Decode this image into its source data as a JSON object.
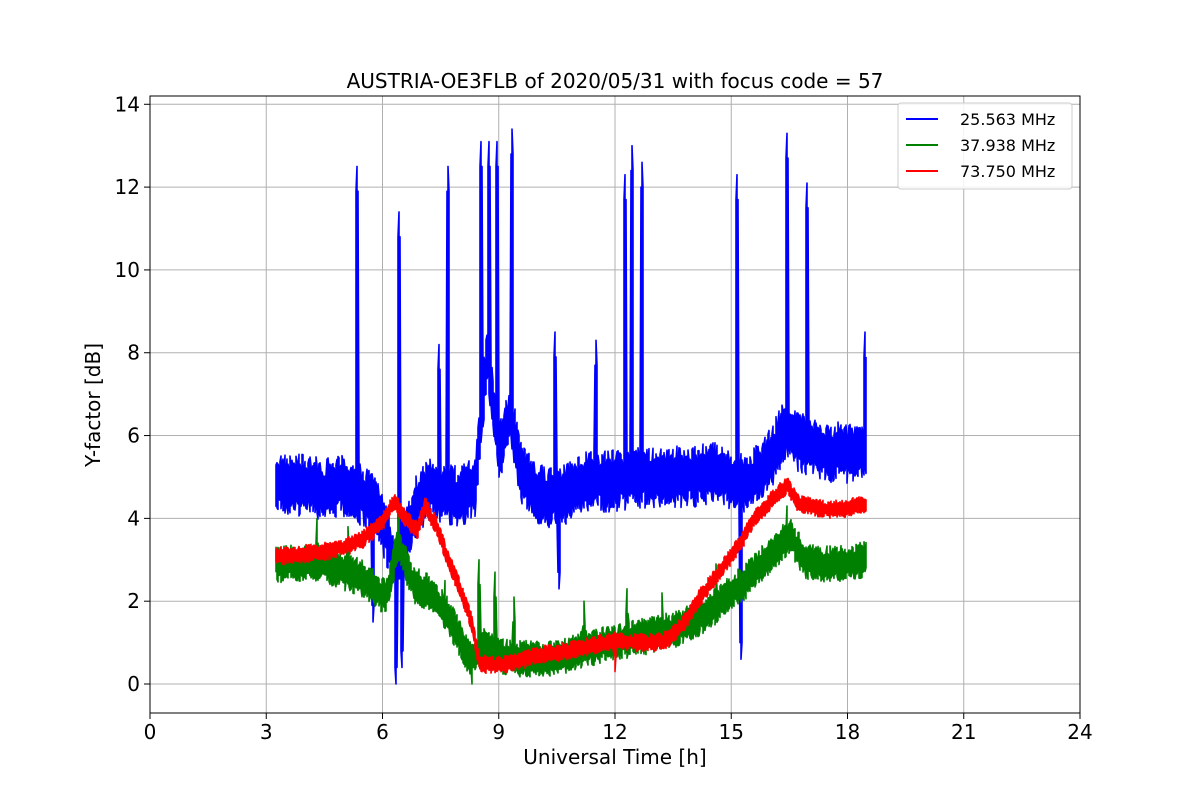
{
  "chart_data": {
    "type": "line",
    "title": "AUSTRIA-OE3FLB of 2020/05/31 with focus code = 57",
    "xlabel": "Universal Time [h]",
    "ylabel": "Y-factor [dB]",
    "xlim": [
      0,
      24
    ],
    "ylim": [
      -0.7,
      14.2
    ],
    "xticks": [
      0,
      3,
      6,
      9,
      12,
      15,
      18,
      21,
      24
    ],
    "yticks": [
      0,
      2,
      4,
      6,
      8,
      10,
      12,
      14
    ],
    "grid": true,
    "legend_position": "top-right",
    "series": [
      {
        "name": "25.563 MHz",
        "color": "#0000ff",
        "x": [
          3.25,
          3.5,
          4.0,
          4.5,
          5.0,
          5.4,
          5.8,
          6.1,
          6.3,
          6.5,
          6.8,
          7.2,
          7.6,
          8.0,
          8.4,
          8.7,
          9.0,
          9.3,
          9.6,
          10.0,
          10.4,
          10.8,
          11.2,
          11.6,
          12.0,
          12.5,
          13.0,
          13.5,
          14.0,
          14.5,
          14.9,
          15.3,
          15.7,
          16.0,
          16.4,
          16.8,
          17.2,
          17.6,
          18.0,
          18.5
        ],
        "y": [
          4.9,
          4.8,
          4.8,
          4.7,
          4.8,
          4.6,
          4.4,
          3.6,
          3.0,
          3.2,
          4.2,
          4.7,
          4.6,
          4.5,
          4.8,
          8.0,
          5.5,
          6.5,
          5.0,
          4.6,
          4.5,
          4.6,
          4.9,
          4.9,
          4.9,
          5.0,
          5.0,
          5.0,
          5.0,
          5.1,
          5.0,
          4.8,
          5.1,
          5.4,
          6.2,
          5.8,
          5.7,
          5.6,
          5.6,
          5.6
        ],
        "noise": 0.75,
        "spikes": [
          [
            5.35,
            12.5
          ],
          [
            6.42,
            11.4
          ],
          [
            7.47,
            8.2
          ],
          [
            7.7,
            12.5
          ],
          [
            8.55,
            13.1
          ],
          [
            8.75,
            13.1
          ],
          [
            8.95,
            13.1
          ],
          [
            9.35,
            13.4
          ],
          [
            10.45,
            8.5
          ],
          [
            11.5,
            8.3
          ],
          [
            12.25,
            12.3
          ],
          [
            12.45,
            13.0
          ],
          [
            12.7,
            12.6
          ],
          [
            15.15,
            12.3
          ],
          [
            16.45,
            13.3
          ],
          [
            16.95,
            12.1
          ],
          [
            18.45,
            8.5
          ]
        ],
        "dips": [
          [
            6.35,
            0.0
          ],
          [
            6.5,
            0.4
          ],
          [
            5.75,
            1.5
          ],
          [
            10.55,
            2.3
          ],
          [
            15.25,
            0.6
          ]
        ]
      },
      {
        "name": "37.938 MHz",
        "color": "#008000",
        "x": [
          3.25,
          3.6,
          4.0,
          4.5,
          5.0,
          5.4,
          5.8,
          6.1,
          6.4,
          6.8,
          7.2,
          7.6,
          8.0,
          8.3,
          8.6,
          9.0,
          9.5,
          10.0,
          10.5,
          11.0,
          11.5,
          12.0,
          12.5,
          13.0,
          13.5,
          14.0,
          14.5,
          15.0,
          15.4,
          15.8,
          16.2,
          16.5,
          16.9,
          17.3,
          17.8,
          18.5
        ],
        "y": [
          2.9,
          2.9,
          2.9,
          2.9,
          2.7,
          2.6,
          2.3,
          2.1,
          3.4,
          2.4,
          2.2,
          1.8,
          1.1,
          0.5,
          0.9,
          0.7,
          0.6,
          0.6,
          0.6,
          0.8,
          0.9,
          1.0,
          1.1,
          1.2,
          1.3,
          1.5,
          1.8,
          2.2,
          2.5,
          2.9,
          3.3,
          3.6,
          3.0,
          2.9,
          2.9,
          3.0
        ],
        "noise": 0.45,
        "spikes": [
          [
            4.3,
            4.0
          ],
          [
            5.1,
            3.8
          ],
          [
            6.42,
            4.2
          ],
          [
            7.6,
            2.5
          ],
          [
            8.5,
            3.0
          ],
          [
            8.9,
            2.7
          ],
          [
            9.4,
            2.1
          ],
          [
            11.2,
            2.0
          ],
          [
            12.3,
            2.3
          ],
          [
            13.2,
            2.2
          ],
          [
            14.6,
            2.9
          ],
          [
            16.45,
            4.3
          ]
        ],
        "dips": [
          [
            8.3,
            0.0
          ]
        ]
      },
      {
        "name": "73.750 MHz",
        "color": "#ff0000",
        "x": [
          3.25,
          3.6,
          4.0,
          4.5,
          5.0,
          5.5,
          6.0,
          6.3,
          6.6,
          6.9,
          7.1,
          7.4,
          7.7,
          8.0,
          8.3,
          8.5,
          8.9,
          9.3,
          9.7,
          10.0,
          10.5,
          11.0,
          11.5,
          12.0,
          12.5,
          13.0,
          13.4,
          13.8,
          14.2,
          14.6,
          15.0,
          15.3,
          15.6,
          15.9,
          16.2,
          16.45,
          16.7,
          17.0,
          17.5,
          18.0,
          18.5
        ],
        "y": [
          3.1,
          3.1,
          3.15,
          3.2,
          3.3,
          3.5,
          3.9,
          4.4,
          4.0,
          3.7,
          4.3,
          3.8,
          3.0,
          2.3,
          1.5,
          0.5,
          0.45,
          0.5,
          0.6,
          0.7,
          0.75,
          0.85,
          0.95,
          1.05,
          1.0,
          1.0,
          1.1,
          1.5,
          2.1,
          2.6,
          3.1,
          3.5,
          4.0,
          4.3,
          4.6,
          4.8,
          4.4,
          4.3,
          4.2,
          4.25,
          4.35
        ],
        "noise": 0.22,
        "spikes": [
          [
            12.0,
            0.3
          ]
        ],
        "dips": []
      }
    ]
  }
}
